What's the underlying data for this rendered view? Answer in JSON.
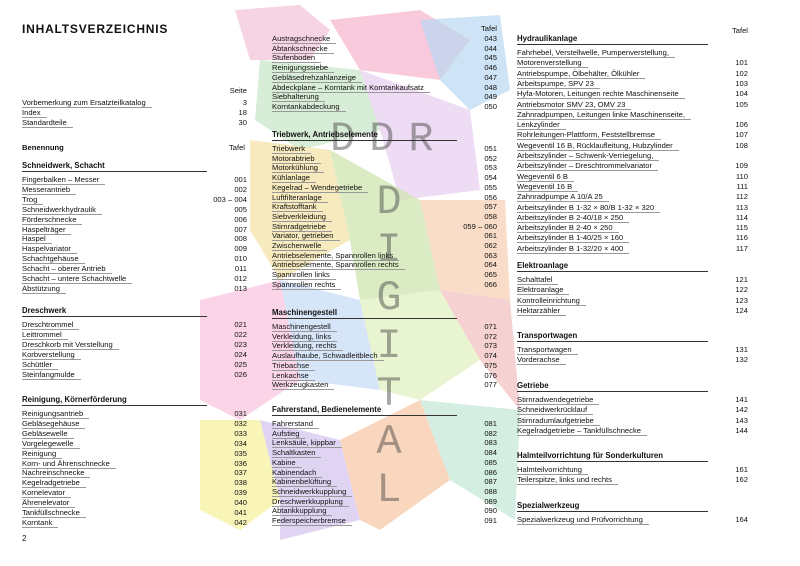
{
  "title": "INHALTSVERZEICHNIS",
  "page_number": "2",
  "watermark": {
    "top": "DDR",
    "vertical": "DIGITAL"
  },
  "intro": {
    "header": "Seite",
    "entries": [
      {
        "label": "Vorbemerkung zum Ersatzteilkatalog",
        "page": "3"
      },
      {
        "label": "Index",
        "page": "18"
      },
      {
        "label": "Standardteile",
        "page": "30"
      }
    ]
  },
  "column_header": {
    "label": "Benennung",
    "number": "Tafel"
  },
  "middle_header": "Tafel",
  "right_header": "Tafel",
  "columns": [
    {
      "blocks": [
        {
          "heading": "Schneidwerk, Schacht",
          "entries": [
            {
              "label": "Fingerbalken – Messer",
              "tafel": "001"
            },
            {
              "label": "Messerantrieb",
              "tafel": "002"
            },
            {
              "label": "Trog",
              "tafel": "003 – 004"
            },
            {
              "label": "Schneidwerkhydraulik",
              "tafel": "005"
            },
            {
              "label": "Förderschnecke",
              "tafel": "006"
            },
            {
              "label": "Haspelträger",
              "tafel": "007"
            },
            {
              "label": "Haspel",
              "tafel": "008"
            },
            {
              "label": "Haspelvariator",
              "tafel": "009"
            },
            {
              "label": "Schachtgehäuse",
              "tafel": "010"
            },
            {
              "label": "Schacht – oberer Antrieb",
              "tafel": "011"
            },
            {
              "label": "Schacht – untere Schachtwelle",
              "tafel": "012"
            },
            {
              "label": "Abstützung",
              "tafel": "013"
            }
          ]
        },
        {
          "heading": "Dreschwerk",
          "entries": [
            {
              "label": "Dreschtrommel",
              "tafel": "021"
            },
            {
              "label": "Leittrommel",
              "tafel": "022"
            },
            {
              "label": "Dreschkorb mit Verstellung",
              "tafel": "023"
            },
            {
              "label": "Korbverstellung",
              "tafel": "024"
            },
            {
              "label": "Schüttler",
              "tafel": "025"
            },
            {
              "label": "Steinfangmulde",
              "tafel": "026"
            }
          ]
        },
        {
          "heading": "Reinigung, Körnerförderung",
          "entries": [
            {
              "label": "Reinigungsantrieb",
              "tafel": "031"
            },
            {
              "label": "Gebläsegehäuse",
              "tafel": "032"
            },
            {
              "label": "Gebläsewelle",
              "tafel": "033"
            },
            {
              "label": "Vorgelegewelle",
              "tafel": "034"
            },
            {
              "label": "Reinigung",
              "tafel": "035"
            },
            {
              "label": "Korn- und Ährenschnecke",
              "tafel": "036"
            },
            {
              "label": "Nachreinschnecke",
              "tafel": "037"
            },
            {
              "label": "Kegelradgetriebe",
              "tafel": "038"
            },
            {
              "label": "Kornelevator",
              "tafel": "039"
            },
            {
              "label": "Ährenelevator",
              "tafel": "040"
            },
            {
              "label": "Tankfüllschnecke",
              "tafel": "041"
            },
            {
              "label": "Korntank",
              "tafel": "042"
            }
          ]
        }
      ]
    },
    {
      "blocks": [
        {
          "entries": [
            {
              "label": "Austragschnecke",
              "tafel": "043"
            },
            {
              "label": "Abtankschnecke",
              "tafel": "044"
            },
            {
              "label": "Stufenboden",
              "tafel": "045"
            },
            {
              "label": "Reinigungssiebe",
              "tafel": "046"
            },
            {
              "label": "Gebläsedrehzahlanzeige",
              "tafel": "047"
            },
            {
              "label": "Abdeckplane – Korntank mit Korntankaufsatz",
              "tafel": "048"
            },
            {
              "label": "Siebhalterung",
              "tafel": "049"
            },
            {
              "label": "Korntankabdeckung",
              "tafel": "050"
            }
          ]
        },
        {
          "heading": "Triebwerk, Antriebselemente",
          "entries": [
            {
              "label": "Triebwerk",
              "tafel": "051"
            },
            {
              "label": "Motorabtrieb",
              "tafel": "052"
            },
            {
              "label": "Motorkühlung",
              "tafel": "053"
            },
            {
              "label": "Kühlanlage",
              "tafel": "054"
            },
            {
              "label": "Kegelrad – Wendegetriebe",
              "tafel": "055"
            },
            {
              "label": "Luftfilteranlage",
              "tafel": "056"
            },
            {
              "label": "Kraftstofftank",
              "tafel": "057"
            },
            {
              "label": "Siebverkleidung",
              "tafel": "058"
            },
            {
              "label": "Stirnradgetriebe",
              "tafel": "059 – 060"
            },
            {
              "label": "Variator, getrieben",
              "tafel": "061"
            },
            {
              "label": "Zwischenwelle",
              "tafel": "062"
            },
            {
              "label": "Antriebselemente, Spannrollen links",
              "tafel": "063"
            },
            {
              "label": "Antriebselemente, Spannrollen rechts",
              "tafel": "064"
            },
            {
              "label": "Spannrollen links",
              "tafel": "065"
            },
            {
              "label": "Spannrollen rechts",
              "tafel": "066"
            }
          ]
        },
        {
          "heading": "Maschinengestell",
          "entries": [
            {
              "label": "Maschinengestell",
              "tafel": "071"
            },
            {
              "label": "Verkleidung, links",
              "tafel": "072"
            },
            {
              "label": "Verkleidung, rechts",
              "tafel": "073"
            },
            {
              "label": "Auslaufhaube, Schwadleitblech",
              "tafel": "074"
            },
            {
              "label": "Triebachse",
              "tafel": "075"
            },
            {
              "label": "Lenkachse",
              "tafel": "076"
            },
            {
              "label": "Werkzeugkasten",
              "tafel": "077"
            }
          ]
        },
        {
          "heading": "Fahrerstand, Bedienelemente",
          "entries": [
            {
              "label": "Fahrerstand",
              "tafel": "081"
            },
            {
              "label": "Aufstieg",
              "tafel": "082"
            },
            {
              "label": "Lenksäule, kippbar",
              "tafel": "083"
            },
            {
              "label": "Schaltkasten",
              "tafel": "084"
            },
            {
              "label": "Kabine",
              "tafel": "085"
            },
            {
              "label": "Kabinendach",
              "tafel": "086"
            },
            {
              "label": "Kabinenbelüftung",
              "tafel": "087"
            },
            {
              "label": "Schneidwerkkupplung",
              "tafel": "088"
            },
            {
              "label": "Dreschwerkkupplung",
              "tafel": "089"
            },
            {
              "label": "Abtankkupplung",
              "tafel": "090"
            },
            {
              "label": "Federspeicherbremse",
              "tafel": "091"
            }
          ]
        }
      ]
    },
    {
      "blocks": [
        {
          "heading": "Hydraulikanlage",
          "entries": [
            {
              "label": [
                "Fahrhebel, Verstellwelle, Pumpenverstellung,",
                "Motorenverstellung"
              ],
              "tafel": "101"
            },
            {
              "label": [
                "Antriebspumpe, Ölbehälter, Ölkühler"
              ],
              "tafel": "102"
            },
            {
              "label": [
                "Arbeitspumpe, SPV 23"
              ],
              "tafel": "103"
            },
            {
              "label": [
                "Hyfa-Motoren, Leitungen rechte Maschinenseite"
              ],
              "tafel": "104"
            },
            {
              "label": [
                "Antriebsmotor SMV 23, OMV 23"
              ],
              "tafel": "105"
            },
            {
              "label": [
                "Zahnradpumpen, Leitungen linke Maschinenseite,",
                "Lenkzylinder"
              ],
              "tafel": "106"
            },
            {
              "label": [
                "Rohrleitungen-Plattform, Feststellbremse"
              ],
              "tafel": "107"
            },
            {
              "label": [
                "Wegeventil 16 B, Rücklaufleitung, Hubzylinder"
              ],
              "tafel": "108"
            },
            {
              "label": [
                "Arbeitszylinder – Schwenk-Verriegelung,",
                "Arbeitszylinder – Dreschtrommelvariator"
              ],
              "tafel": "109"
            },
            {
              "label": [
                "Wegeventil 6 B"
              ],
              "tafel": "110"
            },
            {
              "label": [
                "Wegeventil 16 B"
              ],
              "tafel": "111"
            },
            {
              "label": [
                "Zahnradpumpe A 10/A 25"
              ],
              "tafel": "112"
            },
            {
              "label": [
                "Arbeitszylinder B 1-32 × 80/B 1-32 × 320"
              ],
              "tafel": "113"
            },
            {
              "label": [
                "Arbeitszylinder B 2-40/18 × 250"
              ],
              "tafel": "114"
            },
            {
              "label": [
                "Arbeitszylinder B 2-40 × 250"
              ],
              "tafel": "115"
            },
            {
              "label": [
                "Arbeitszylinder B 1-40/25 × 160"
              ],
              "tafel": "116"
            },
            {
              "label": [
                "Arbeitszylinder B 1-32/20 × 400"
              ],
              "tafel": "117"
            }
          ]
        },
        {
          "heading": "Elektroanlage",
          "entries": [
            {
              "label": [
                "Schalttafel"
              ],
              "tafel": "121"
            },
            {
              "label": [
                "Elektroanlage"
              ],
              "tafel": "122"
            },
            {
              "label": [
                "Kontrolleinrichtung"
              ],
              "tafel": "123"
            },
            {
              "label": [
                "Hektarzähler"
              ],
              "tafel": "124"
            }
          ]
        },
        {
          "heading": "Transportwagen",
          "entries": [
            {
              "label": [
                "Transportwagen"
              ],
              "tafel": "131"
            },
            {
              "label": [
                "Vorderachse"
              ],
              "tafel": "132"
            }
          ]
        },
        {
          "heading": "Getriebe",
          "entries": [
            {
              "label": [
                "Stirnradwendegetriebe"
              ],
              "tafel": "141"
            },
            {
              "label": [
                "Schneidwerkrücklauf"
              ],
              "tafel": "142"
            },
            {
              "label": [
                "Stirnradumlaufgetriebe"
              ],
              "tafel": "143"
            },
            {
              "label": [
                "Kegelradgetriebe – Tankfüllschnecke"
              ],
              "tafel": "144"
            }
          ]
        },
        {
          "heading": "Halmteilvorrichtung für Sonderkulturen",
          "entries": [
            {
              "label": [
                "Halmteilvorrichtung"
              ],
              "tafel": "161"
            },
            {
              "label": [
                "Teilerspitze, links und rechts"
              ],
              "tafel": "162"
            }
          ]
        },
        {
          "heading": "Spezialwerkzeug",
          "entries": [
            {
              "label": [
                "Spezialwerkzeug und Prüfvorrichtung"
              ],
              "tafel": "164"
            }
          ]
        }
      ]
    }
  ]
}
